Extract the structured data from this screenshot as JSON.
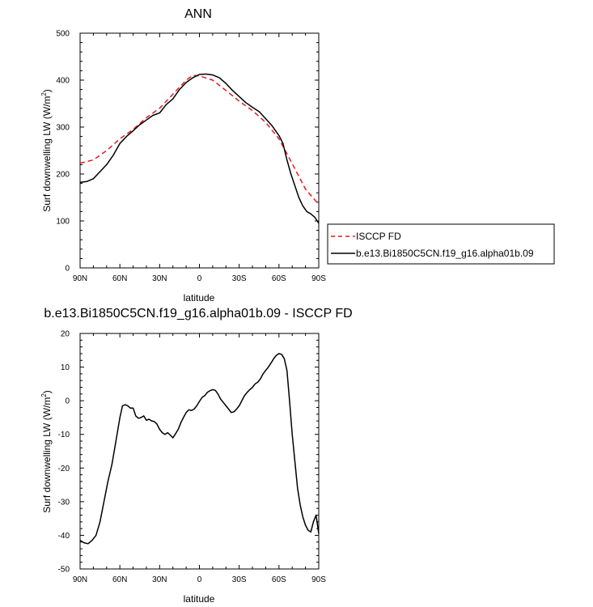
{
  "chart_data": [
    {
      "type": "line",
      "title": "ANN",
      "xlabel": "latitude",
      "ylabel": "Surf downwelling LW (W/m",
      "ylabel_sup": "2",
      "ylabel_end": ")",
      "xlim": [
        90,
        -90
      ],
      "ylim": [
        0,
        500
      ],
      "x_ticks": [
        {
          "value": 90,
          "label": "90N"
        },
        {
          "value": 60,
          "label": "60N"
        },
        {
          "value": 30,
          "label": "30N"
        },
        {
          "value": 0,
          "label": "0"
        },
        {
          "value": -30,
          "label": "30S"
        },
        {
          "value": -60,
          "label": "60S"
        },
        {
          "value": -90,
          "label": "90S"
        }
      ],
      "y_ticks": [
        0,
        100,
        200,
        300,
        400,
        500
      ],
      "legend": "right",
      "series": [
        {
          "name": "ISCCP FD",
          "color": "#e41a1c",
          "dash": "dashed",
          "x": [
            90,
            80,
            70,
            60,
            50,
            40,
            30,
            20,
            10,
            5,
            0,
            -10,
            -20,
            -30,
            -40,
            -50,
            -60,
            -70,
            -80,
            -90
          ],
          "y": [
            223,
            230,
            250,
            275,
            295,
            320,
            340,
            370,
            400,
            410,
            409,
            400,
            378,
            355,
            335,
            310,
            275,
            222,
            168,
            135
          ]
        },
        {
          "name": "b.e13.Bi1850C5CN.f19_g16.alpha01b.09",
          "color": "#000000",
          "dash": "solid",
          "x": [
            90,
            85,
            80,
            75,
            70,
            65,
            60,
            55,
            50,
            45,
            40,
            35,
            30,
            25,
            20,
            15,
            10,
            5,
            0,
            -5,
            -10,
            -15,
            -20,
            -25,
            -30,
            -35,
            -40,
            -45,
            -50,
            -55,
            -60,
            -63,
            -66,
            -69,
            -72,
            -75,
            -78,
            -81,
            -84,
            -87,
            -90
          ],
          "y": [
            182,
            184,
            190,
            205,
            220,
            240,
            265,
            280,
            292,
            305,
            315,
            325,
            330,
            348,
            360,
            380,
            395,
            405,
            412,
            413,
            411,
            405,
            393,
            378,
            365,
            352,
            342,
            333,
            318,
            302,
            282,
            265,
            230,
            200,
            175,
            150,
            132,
            120,
            115,
            108,
            95
          ]
        }
      ]
    },
    {
      "type": "line",
      "title": "b.e13.Bi1850C5CN.f19_g16.alpha01b.09 - ISCCP FD",
      "xlabel": "latitude",
      "ylabel": "Surf downwelling LW (W/m",
      "ylabel_sup": "2",
      "ylabel_end": ")",
      "xlim": [
        90,
        -90
      ],
      "ylim": [
        -50,
        20
      ],
      "x_ticks": [
        {
          "value": 90,
          "label": "90N"
        },
        {
          "value": 60,
          "label": "60N"
        },
        {
          "value": 30,
          "label": "30N"
        },
        {
          "value": 0,
          "label": "0"
        },
        {
          "value": -30,
          "label": "30S"
        },
        {
          "value": -60,
          "label": "60S"
        },
        {
          "value": -90,
          "label": "90S"
        }
      ],
      "y_ticks": [
        -50,
        -40,
        -30,
        -20,
        -10,
        0,
        10,
        20
      ],
      "series": [
        {
          "color": "#000000",
          "dash": "solid",
          "x": [
            90,
            87,
            84,
            81,
            78,
            75,
            72,
            69,
            66,
            63,
            60,
            58,
            56,
            54,
            52,
            50,
            48,
            46,
            44,
            42,
            40,
            38,
            36,
            34,
            32,
            30,
            28,
            26,
            24,
            22,
            20,
            18,
            16,
            14,
            12,
            10,
            8,
            6,
            4,
            2,
            0,
            -2,
            -4,
            -6,
            -8,
            -10,
            -12,
            -14,
            -16,
            -18,
            -20,
            -22,
            -24,
            -26,
            -28,
            -30,
            -32,
            -34,
            -36,
            -38,
            -40,
            -42,
            -44,
            -46,
            -48,
            -50,
            -52,
            -54,
            -56,
            -58,
            -60,
            -62,
            -64,
            -66,
            -68,
            -70,
            -72,
            -74,
            -76,
            -78,
            -80,
            -82,
            -84,
            -86,
            -88,
            -90
          ],
          "y": [
            -41.5,
            -42.2,
            -42.5,
            -41.5,
            -40,
            -36,
            -30,
            -24,
            -19,
            -12,
            -5,
            -1.5,
            -1.2,
            -1.5,
            -2.2,
            -2.2,
            -4.5,
            -5.2,
            -5,
            -4.5,
            -5.8,
            -5.5,
            -6,
            -6.2,
            -7,
            -8.5,
            -9.5,
            -10,
            -9.5,
            -10.2,
            -11,
            -9.8,
            -8.5,
            -6.5,
            -5,
            -3.5,
            -2.7,
            -2.9,
            -2.5,
            -1.5,
            -0.2,
            1,
            1.5,
            2.5,
            3,
            3.3,
            3.1,
            2,
            0.5,
            -0.5,
            -1.5,
            -2.5,
            -3.5,
            -3.3,
            -2.5,
            -1.5,
            0,
            1.5,
            2.5,
            3.3,
            4,
            5,
            5.5,
            6.5,
            8,
            9,
            10,
            11.2,
            12.5,
            13.5,
            14,
            13.8,
            12.5,
            9,
            0,
            -10,
            -18,
            -26,
            -31,
            -34.5,
            -37,
            -38.5,
            -39,
            -36,
            -34,
            -39.5
          ]
        }
      ]
    }
  ]
}
